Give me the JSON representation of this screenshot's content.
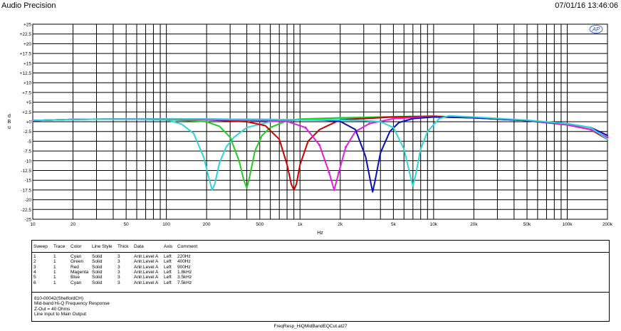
{
  "header": {
    "app_title": "Audio Precision",
    "datetime": "07/01/16 13:46:06",
    "logo_text": "AP"
  },
  "chart_data": {
    "type": "line",
    "title": "",
    "xlabel": "Hz",
    "ylabel": "d B u",
    "x_scale": "log",
    "xlim": [
      10,
      200000
    ],
    "ylim": [
      -25,
      25
    ],
    "grid": true,
    "x_tick_labels": [
      "10",
      "20",
      "50",
      "100",
      "200",
      "500",
      "1k",
      "2k",
      "5k",
      "10k",
      "20k",
      "50k",
      "100k",
      "200k"
    ],
    "y_tick_labels": [
      "+25",
      "+22.5",
      "+20",
      "+17.5",
      "+15",
      "+12.5",
      "+10",
      "+7.5",
      "+5",
      "+2.5",
      "+0",
      "-2.5",
      "-5",
      "-7.5",
      "-10",
      "-12.5",
      "-15",
      "-17.5",
      "-20",
      "-22.5",
      "-25"
    ],
    "series": [
      {
        "name": "220Hz",
        "color": "#2FD6D6",
        "x": [
          10,
          20,
          50,
          100,
          130,
          160,
          190,
          210,
          220,
          230,
          250,
          280,
          320,
          400,
          600,
          1000,
          2000,
          5000,
          10000,
          20000,
          50000,
          100000,
          150000,
          200000
        ],
        "y": [
          0.3,
          0.6,
          0.7,
          0.5,
          -0.6,
          -3,
          -9,
          -15,
          -17.5,
          -16,
          -10.5,
          -6.5,
          -4,
          -1.5,
          0,
          0.5,
          0.9,
          1.2,
          1.4,
          1,
          0.3,
          -0.8,
          -2,
          -4.5
        ]
      },
      {
        "name": "400Hz",
        "color": "#22CC22",
        "x": [
          10,
          20,
          50,
          100,
          200,
          250,
          300,
          350,
          380,
          400,
          420,
          460,
          520,
          600,
          800,
          1000,
          2000,
          5000,
          10000,
          20000,
          50000,
          100000,
          150000,
          200000
        ],
        "y": [
          0.3,
          0.6,
          0.7,
          0.6,
          0,
          -1.2,
          -4,
          -10,
          -15,
          -17,
          -14,
          -7.5,
          -3.5,
          -1.5,
          0.3,
          0.7,
          1,
          1.3,
          1.4,
          1,
          0.3,
          -0.8,
          -2,
          -4.5
        ]
      },
      {
        "name": "900Hz",
        "color": "#CC0000",
        "x": [
          10,
          20,
          50,
          100,
          200,
          400,
          550,
          700,
          800,
          860,
          900,
          940,
          1000,
          1150,
          1400,
          2000,
          5000,
          10000,
          20000,
          50000,
          100000,
          150000,
          200000
        ],
        "y": [
          0.3,
          0.6,
          0.7,
          0.7,
          0.5,
          0,
          -1,
          -4.5,
          -11,
          -16,
          -17.5,
          -16,
          -11,
          -5,
          -2,
          0.5,
          1.2,
          1.4,
          1,
          0.3,
          -0.8,
          -2,
          -4.5
        ]
      },
      {
        "name": "1.8kHz",
        "color": "#E020E0",
        "x": [
          10,
          20,
          50,
          100,
          200,
          500,
          800,
          1100,
          1400,
          1650,
          1800,
          1950,
          2200,
          2600,
          3300,
          5000,
          10000,
          20000,
          50000,
          100000,
          150000,
          200000
        ],
        "y": [
          0.3,
          0.6,
          0.7,
          0.7,
          0.6,
          0.3,
          0.1,
          -1.5,
          -6,
          -13,
          -17.5,
          -13,
          -6.5,
          -2.5,
          -0.5,
          0.8,
          1.3,
          1,
          0.3,
          -0.8,
          -2,
          -4
        ],
        "marker": "diamond"
      },
      {
        "name": "3.5kHz",
        "color": "#0A10B8",
        "x": [
          10,
          20,
          50,
          100,
          200,
          500,
          1000,
          1500,
          2000,
          2600,
          3100,
          3400,
          3500,
          3650,
          4000,
          4700,
          5500,
          7000,
          10000,
          20000,
          50000,
          100000,
          150000,
          200000
        ],
        "y": [
          0.3,
          0.6,
          0.7,
          0.7,
          0.7,
          0.6,
          0.5,
          0.4,
          0.1,
          -2,
          -9,
          -16,
          -18,
          -15,
          -8,
          -2.5,
          -0.2,
          0.8,
          1.2,
          1,
          0.3,
          -0.5,
          -1.5,
          -3.5
        ]
      },
      {
        "name": "7.5kHz",
        "color": "#2FD6D6",
        "x": [
          10,
          20,
          50,
          100,
          200,
          500,
          1000,
          2000,
          3000,
          4000,
          5000,
          6000,
          6700,
          7000,
          7300,
          8000,
          9000,
          11000,
          13000,
          20000,
          50000,
          100000,
          150000,
          200000
        ],
        "y": [
          0.3,
          0.6,
          0.7,
          0.7,
          0.7,
          0.6,
          0.5,
          0.4,
          0.3,
          0,
          -1.5,
          -7,
          -14,
          -16.5,
          -14,
          -7,
          -2.5,
          0.8,
          1.5,
          1.2,
          0.4,
          -0.5,
          -1.5,
          -4.5
        ]
      }
    ]
  },
  "legend": {
    "headers": [
      "Sweep",
      "Trace",
      "Color",
      "Line Style",
      "Thick",
      "Data",
      "Axis",
      "Comment"
    ],
    "rows": [
      [
        "1",
        "1",
        "Cyan",
        "Solid",
        "3",
        "Anlr.Level A",
        "Left",
        "220Hz"
      ],
      [
        "2",
        "1",
        "Green",
        "Solid",
        "3",
        "Anlr.Level A",
        "Left",
        "400Hz"
      ],
      [
        "3",
        "1",
        "Red",
        "Solid",
        "3",
        "Anlr.Level A",
        "Left",
        "900Hz"
      ],
      [
        "4",
        "1",
        "Magenta",
        "Solid",
        "3",
        "Anlr.Level A",
        "Left",
        "1.8kHz"
      ],
      [
        "5",
        "1",
        "Blue",
        "Solid",
        "3",
        "Anlr.Level A",
        "Left",
        "3.5kHz"
      ],
      [
        "6",
        "1",
        "Cyan",
        "Solid",
        "3",
        "Anlr.Level A",
        "Left",
        "7.5kHz"
      ]
    ]
  },
  "notes": [
    "810-00042(ShelfordCH)",
    "Mid-band Hi-Q Frequency Response",
    "Z-Out = 40 Ohms",
    "Line Input to Main Output"
  ],
  "footer": {
    "filename": "FreqResp_HiQMidBandEQCut.at27"
  }
}
